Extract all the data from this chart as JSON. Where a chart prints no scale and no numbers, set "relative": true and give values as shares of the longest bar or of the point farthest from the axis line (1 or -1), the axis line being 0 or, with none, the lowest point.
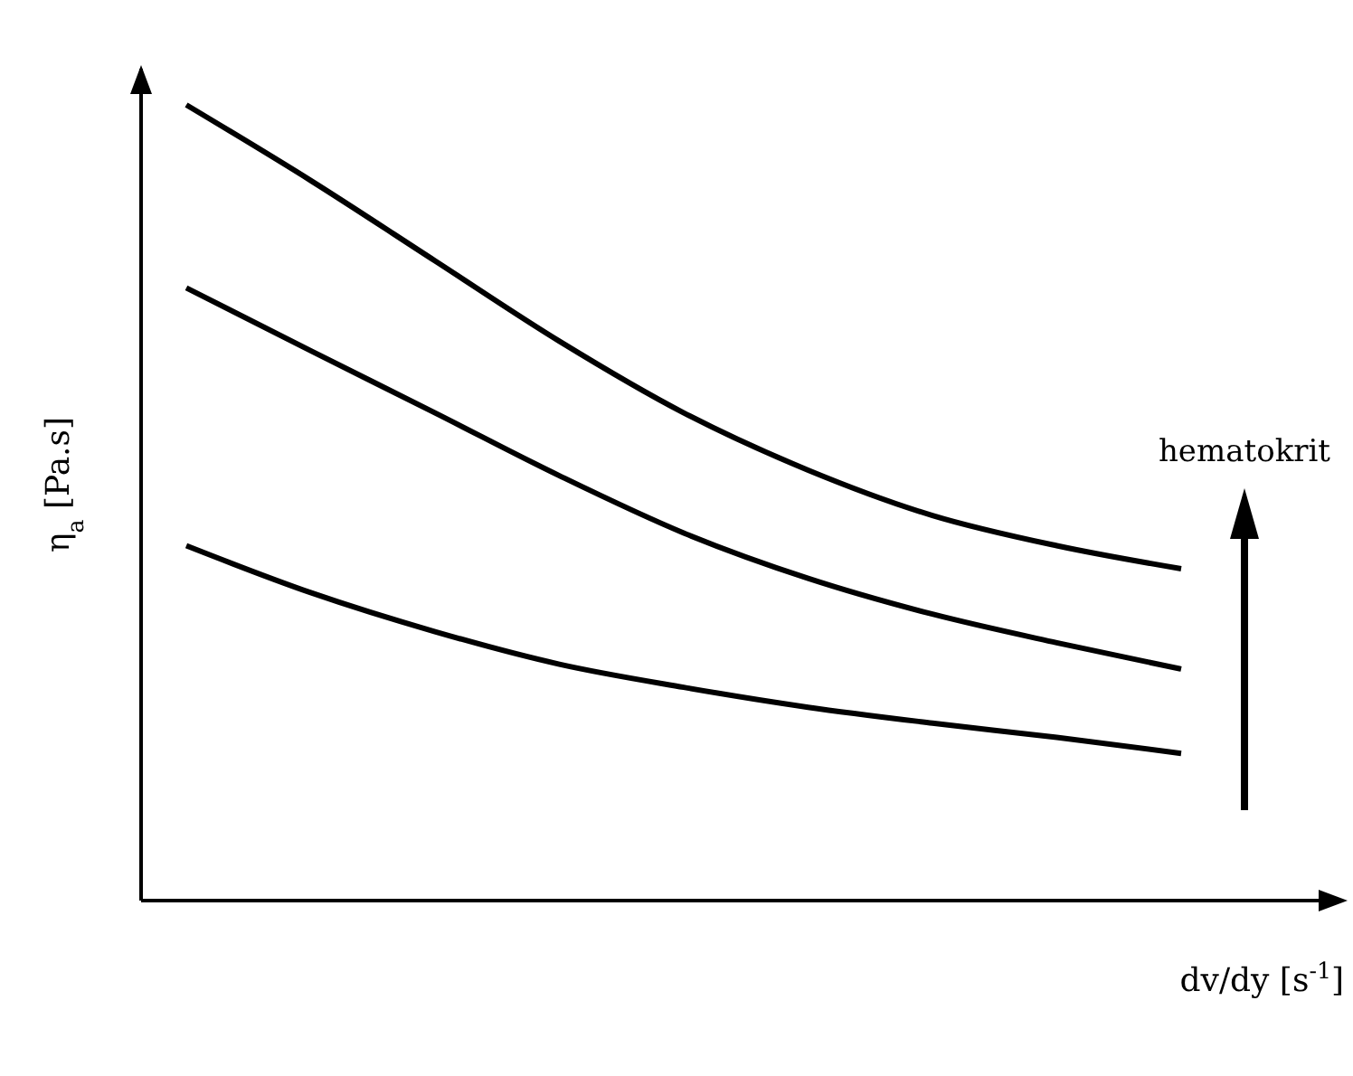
{
  "chart_data": {
    "type": "line",
    "relative": true,
    "xlabel": "dv/dy [s$^{-1}$]",
    "ylabel": "η$_{a}$ [Pa.s]",
    "annotations": [
      "hematokrit"
    ],
    "categories": [
      null,
      null,
      null,
      null,
      null,
      null,
      null,
      null,
      null
    ],
    "legend": false,
    "grid": false,
    "marker": "none",
    "line_style": "solid",
    "series": [
      {
        "color": "#000000",
        "values": [
          1,
          0.905,
          0.804,
          0.703,
          0.613,
          0.541,
          0.484,
          0.446,
          0.417
        ]
      },
      {
        "color": "#000000",
        "values": [
          0.77,
          0.691,
          0.613,
          0.534,
          0.462,
          0.405,
          0.36,
          0.324,
          0.291
        ]
      },
      {
        "color": "#000000",
        "values": [
          0.446,
          0.387,
          0.338,
          0.297,
          0.268,
          0.243,
          0.223,
          0.205,
          0.185
        ]
      }
    ]
  }
}
